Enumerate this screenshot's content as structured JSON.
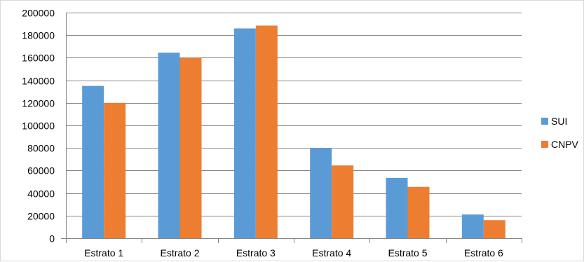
{
  "chart_data": {
    "type": "bar",
    "categories": [
      "Estrato 1",
      "Estrato 2",
      "Estrato 3",
      "Estrato 4",
      "Estrato 5",
      "Estrato 6"
    ],
    "series": [
      {
        "name": "SUI",
        "color": "#5B9BD5",
        "values": [
          135000,
          164500,
          186000,
          80000,
          53500,
          21000
        ]
      },
      {
        "name": "CNPV",
        "color": "#ED7D31",
        "values": [
          120000,
          160000,
          188500,
          64500,
          45500,
          16000
        ]
      }
    ],
    "ylim": [
      0,
      200000
    ],
    "yticks": [
      0,
      20000,
      40000,
      60000,
      80000,
      100000,
      120000,
      140000,
      160000,
      180000,
      200000
    ],
    "title": "",
    "xlabel": "",
    "ylabel": "",
    "grid": true,
    "legend_position": "right",
    "gridline_color": "#868686",
    "axis_color": "#868686"
  }
}
